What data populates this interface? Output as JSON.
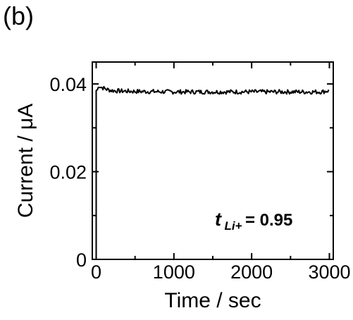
{
  "panel_label": "(b)",
  "chart_data": {
    "type": "line",
    "title": "",
    "xlabel": "Time / sec",
    "ylabel": "Current / μA",
    "xlim": [
      -50,
      3050
    ],
    "ylim": [
      0,
      0.045
    ],
    "xticks": [
      0,
      1000,
      2000,
      3000
    ],
    "xtick_labels": [
      "0",
      "1000",
      "2000",
      "3000"
    ],
    "yticks": [
      0,
      0.02,
      0.04
    ],
    "ytick_labels": [
      "0",
      "0.02",
      "0.04"
    ],
    "grid": false,
    "legend": "none",
    "annotation": {
      "symbol": "t",
      "subscript": "Li+",
      "text": " = 0.95"
    },
    "series": [
      {
        "color": "#000000",
        "points": [
          [
            0,
            0.0
          ],
          [
            0,
            0.0385
          ],
          [
            25,
            0.0388
          ],
          [
            30,
            0.0397
          ],
          [
            60,
            0.0393
          ],
          [
            100,
            0.039
          ],
          [
            150,
            0.0387
          ],
          [
            200,
            0.0385
          ],
          [
            300,
            0.0384
          ],
          [
            500,
            0.0383
          ],
          [
            1000,
            0.0382
          ],
          [
            1500,
            0.0382
          ],
          [
            2000,
            0.0382
          ],
          [
            2500,
            0.0382
          ],
          [
            2900,
            0.0382
          ],
          [
            3000,
            0.0385
          ]
        ],
        "noise_amplitude": 0.0005
      }
    ]
  }
}
